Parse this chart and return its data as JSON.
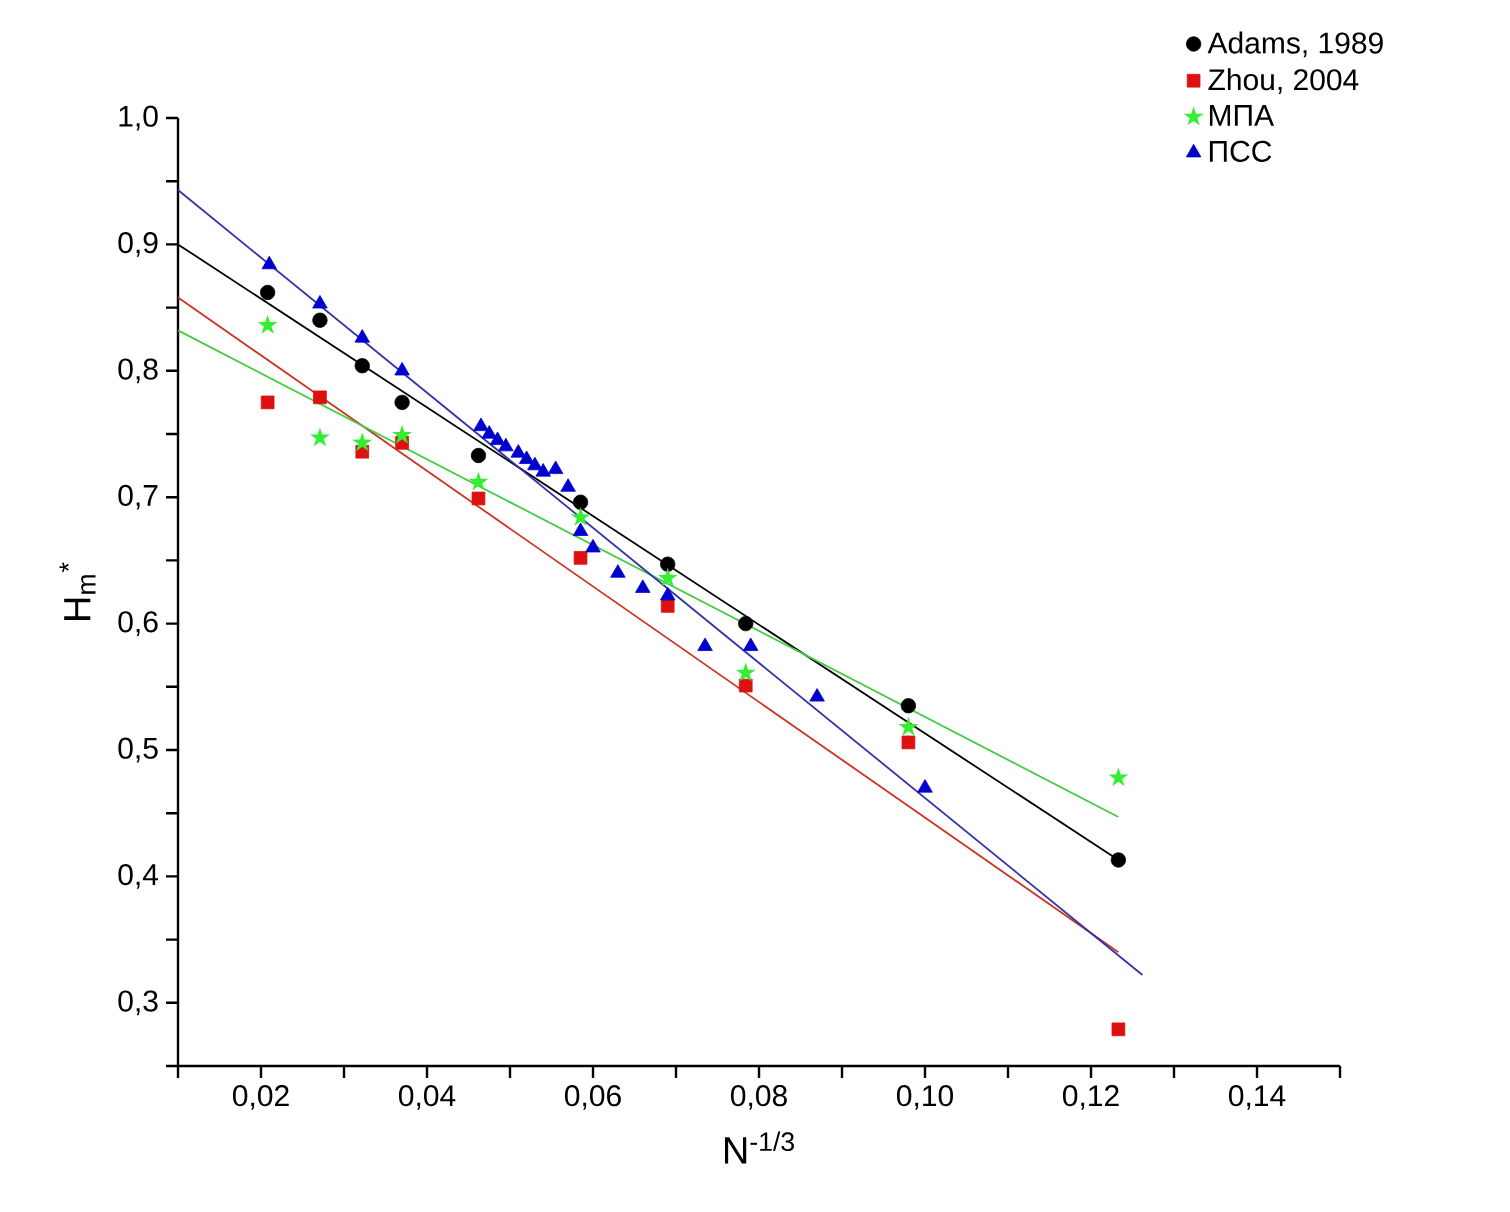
{
  "chart_data": {
    "type": "scatter",
    "xlabel": "N$^{-1/3}$",
    "ylabel": "H$_{m}$$^{*}$",
    "xlim": [
      0.01,
      0.15
    ],
    "ylim": [
      0.25,
      1.0
    ],
    "xticks": [
      {
        "value": 0.01,
        "label": null
      },
      {
        "value": 0.02,
        "label": "0,02"
      },
      {
        "value": 0.03,
        "label": null
      },
      {
        "value": 0.04,
        "label": "0,04"
      },
      {
        "value": 0.05,
        "label": null
      },
      {
        "value": 0.06,
        "label": "0,06"
      },
      {
        "value": 0.07,
        "label": null
      },
      {
        "value": 0.08,
        "label": "0,08"
      },
      {
        "value": 0.09,
        "label": null
      },
      {
        "value": 0.1,
        "label": "0,10"
      },
      {
        "value": 0.11,
        "label": null
      },
      {
        "value": 0.12,
        "label": "0,12"
      },
      {
        "value": 0.13,
        "label": null
      },
      {
        "value": 0.14,
        "label": "0,14"
      },
      {
        "value": 0.15,
        "label": null
      }
    ],
    "yticks": [
      {
        "value": 0.25,
        "label": null
      },
      {
        "value": 0.3,
        "label": "0,3"
      },
      {
        "value": 0.35,
        "label": null
      },
      {
        "value": 0.4,
        "label": "0,4"
      },
      {
        "value": 0.45,
        "label": null
      },
      {
        "value": 0.5,
        "label": "0,5"
      },
      {
        "value": 0.55,
        "label": null
      },
      {
        "value": 0.6,
        "label": "0,6"
      },
      {
        "value": 0.65,
        "label": null
      },
      {
        "value": 0.7,
        "label": "0,7"
      },
      {
        "value": 0.75,
        "label": null
      },
      {
        "value": 0.8,
        "label": "0,8"
      },
      {
        "value": 0.85,
        "label": null
      },
      {
        "value": 0.9,
        "label": "0,9"
      },
      {
        "value": 0.95,
        "label": null
      },
      {
        "value": 1.0,
        "label": "1,0"
      }
    ],
    "grid": false,
    "legend": "top right",
    "series": [
      {
        "name": "Adams, 1989",
        "color": "#000000",
        "marker": "circle",
        "x": [
          0.0208,
          0.0271,
          0.0322,
          0.037,
          0.0462,
          0.0585,
          0.069,
          0.0784,
          0.098,
          0.1233
        ],
        "values": [
          0.862,
          0.84,
          0.804,
          0.775,
          0.733,
          0.696,
          0.647,
          0.6,
          0.535,
          0.413
        ]
      },
      {
        "name": "Zhou, 2004",
        "color": "#dd1111",
        "marker": "square",
        "x": [
          0.0208,
          0.0271,
          0.0322,
          0.037,
          0.0462,
          0.0585,
          0.069,
          0.0784,
          0.098,
          0.1233
        ],
        "values": [
          0.775,
          0.779,
          0.736,
          0.743,
          0.699,
          0.652,
          0.614,
          0.551,
          0.506,
          0.279
        ]
      },
      {
        "name": "МПА",
        "color": "#33ee33",
        "marker": "star",
        "x": [
          0.0208,
          0.0271,
          0.0322,
          0.037,
          0.0462,
          0.0585,
          0.069,
          0.0784,
          0.098,
          0.1233
        ],
        "values": [
          0.836,
          0.747,
          0.743,
          0.749,
          0.712,
          0.684,
          0.636,
          0.561,
          0.518,
          0.478
        ]
      },
      {
        "name": "ПСС",
        "color": "#0000cc",
        "marker": "triangle",
        "x": [
          0.021,
          0.0271,
          0.0322,
          0.037,
          0.0465,
          0.0475,
          0.0485,
          0.0495,
          0.051,
          0.052,
          0.053,
          0.054,
          0.0555,
          0.057,
          0.0585,
          0.06,
          0.063,
          0.066,
          0.069,
          0.0735,
          0.079,
          0.087,
          0.1
        ],
        "values": [
          0.884,
          0.853,
          0.826,
          0.8,
          0.756,
          0.75,
          0.745,
          0.74,
          0.735,
          0.73,
          0.725,
          0.72,
          0.722,
          0.708,
          0.673,
          0.66,
          0.64,
          0.628,
          0.622,
          0.582,
          0.582,
          0.542,
          0.47
        ]
      },
      {
        "type": "line",
        "marker": "none",
        "color": "#000000",
        "x": [
          0.01,
          0.1233
        ],
        "values": [
          0.9,
          0.413
        ]
      },
      {
        "type": "line",
        "marker": "none",
        "color": "#cc3322",
        "x": [
          0.01,
          0.1233
        ],
        "values": [
          0.858,
          0.34
        ]
      },
      {
        "type": "line",
        "marker": "none",
        "color": "#44cc44",
        "x": [
          0.01,
          0.1233
        ],
        "values": [
          0.832,
          0.447
        ]
      },
      {
        "type": "line",
        "marker": "none",
        "color": "#3333aa",
        "x": [
          0.01,
          0.1262
        ],
        "values": [
          0.943,
          0.322
        ]
      }
    ]
  }
}
